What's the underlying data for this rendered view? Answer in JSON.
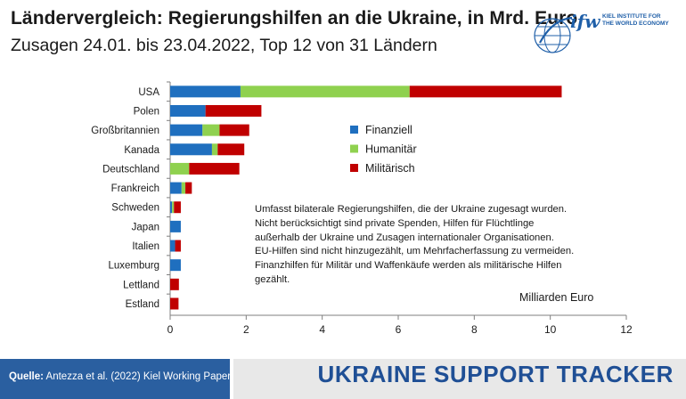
{
  "title": "Ländervergleich: Regierungshilfen an die Ukraine, in Mrd. Euro",
  "subtitle": "Zusagen 24.01. bis 23.04.2022, Top 12 von 31 Ländern",
  "logo": {
    "mark": "ifw",
    "line1": "KIEL INSTITUTE FOR",
    "line2": "THE WORLD ECONOMY"
  },
  "note_lines": [
    "Umfasst bilaterale Regierungshilfen, die der Ukraine zugesagt wurden.",
    "Nicht berücksichtigt sind private Spenden, Hilfen für Flüchtlinge",
    "außerhalb der Ukraine und Zusagen internationaler Organisationen.",
    "EU-Hilfen sind nicht hinzugezählt, um Mehrfacherfassung zu vermeiden.",
    "Finanzhilfen für Militär und Waffenkäufe werden als militärische Hilfen",
    "gezählt."
  ],
  "unit_label": "Milliarden Euro",
  "footer": {
    "source_label": "Quelle:",
    "source_text": "Antezza et al. (2022) Kiel Working Paper",
    "brand": "UKRAINE SUPPORT TRACKER"
  },
  "colors": {
    "finanziell": "#1f6fbf",
    "humanitaer": "#8fd14f",
    "militaerisch": "#c00000",
    "footer_blue": "#2a5fa0",
    "brand_blue": "#1f4f95"
  },
  "chart_data": {
    "type": "bar",
    "orientation": "horizontal",
    "stacked": true,
    "categories": [
      "USA",
      "Polen",
      "Großbritannien",
      "Kanada",
      "Deutschland",
      "Frankreich",
      "Schweden",
      "Japan",
      "Italien",
      "Luxemburg",
      "Lettland",
      "Estland"
    ],
    "series": [
      {
        "name": "Finanziell",
        "color": "#1f6fbf",
        "values": [
          1.85,
          0.93,
          0.85,
          1.1,
          0.0,
          0.3,
          0.05,
          0.28,
          0.13,
          0.28,
          0.0,
          0.0
        ]
      },
      {
        "name": "Humanitär",
        "color": "#8fd14f",
        "values": [
          4.45,
          0.0,
          0.45,
          0.15,
          0.5,
          0.1,
          0.05,
          0.0,
          0.0,
          0.0,
          0.0,
          0.0
        ]
      },
      {
        "name": "Militärisch",
        "color": "#c00000",
        "values": [
          4.0,
          1.47,
          0.78,
          0.7,
          1.32,
          0.17,
          0.18,
          0.0,
          0.15,
          0.0,
          0.23,
          0.22
        ]
      }
    ],
    "xlim": [
      0,
      12
    ],
    "xticks": [
      0,
      2,
      4,
      6,
      8,
      10,
      12
    ],
    "grid": false,
    "legend": "center-right"
  }
}
